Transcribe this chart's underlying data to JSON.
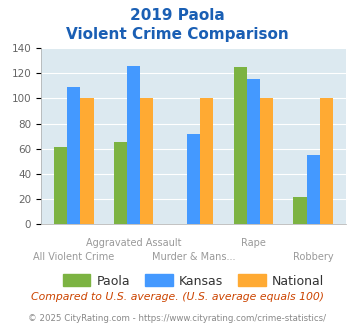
{
  "title_line1": "2019 Paola",
  "title_line2": "Violent Crime Comparison",
  "categories": [
    "All Violent Crime",
    "Aggravated Assault",
    "Murder & Mans...",
    "Rape",
    "Robbery"
  ],
  "series": {
    "Paola": [
      61,
      65,
      0,
      125,
      22
    ],
    "Kansas": [
      109,
      126,
      72,
      115,
      55
    ],
    "National": [
      100,
      100,
      100,
      100,
      100
    ]
  },
  "colors": {
    "Paola": "#7cb342",
    "Kansas": "#4499ff",
    "National": "#ffaa33"
  },
  "ylim": [
    0,
    140
  ],
  "yticks": [
    0,
    20,
    40,
    60,
    80,
    100,
    120,
    140
  ],
  "bar_width": 0.22,
  "plot_bg": "#dce9f0",
  "title_color": "#1a5fb4",
  "axis_label_color": "#999999",
  "legend_label_color": "#333333",
  "footer_text": "Compared to U.S. average. (U.S. average equals 100)",
  "footer_color": "#cc4400",
  "copyright_text": "© 2025 CityRating.com - https://www.cityrating.com/crime-statistics/",
  "copyright_color": "#888888",
  "row1_indices": [
    1,
    3
  ],
  "row1_labels": [
    "Aggravated Assault",
    "Rape"
  ],
  "row2_indices": [
    0,
    2,
    4
  ],
  "row2_labels": [
    "All Violent Crime",
    "Murder & Mans...",
    "Robbery"
  ]
}
